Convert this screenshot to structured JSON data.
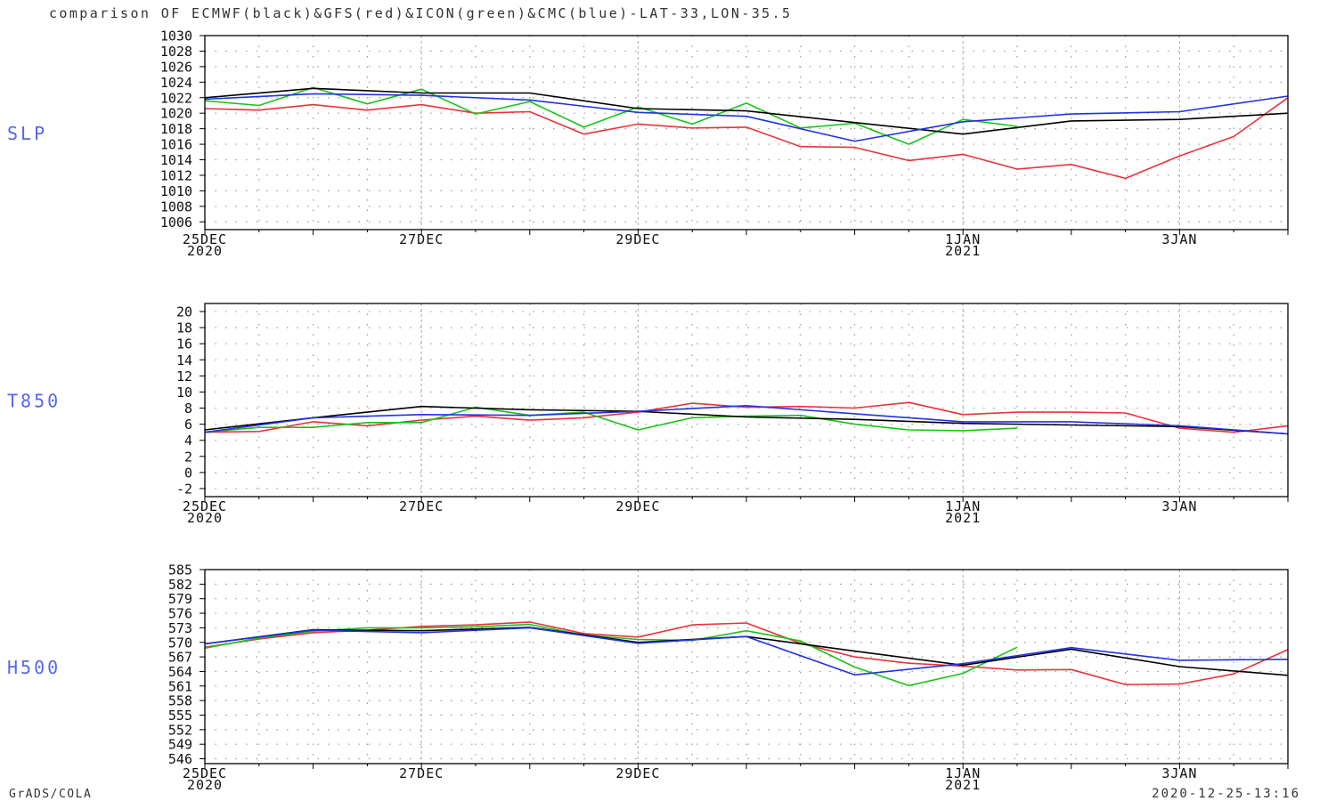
{
  "title": "comparison OF ECMWF(black)&GFS(red)&ICON(green)&CMC(blue)-LAT-33,LON-35.5",
  "footer_left": "GrADS/COLA",
  "footer_right": "2020-12-25-13:16",
  "colors": {
    "ecmwf": "#000000",
    "gfs": "#e8333a",
    "icon": "#18c418",
    "cmc": "#2033e0",
    "label": "#5566ee",
    "grid": "#9a9a9a"
  },
  "x_ticks": [
    {
      "x": 0,
      "top": "25DEC",
      "bottom": "2020"
    },
    {
      "x": 2,
      "top": "27DEC",
      "bottom": ""
    },
    {
      "x": 4,
      "top": "29DEC",
      "bottom": ""
    },
    {
      "x": 7,
      "top": "1JAN",
      "bottom": "2021"
    },
    {
      "x": 9,
      "top": "3JAN",
      "bottom": ""
    }
  ],
  "chart_data": [
    {
      "type": "line",
      "panel_label": "SLP",
      "x_unit": "days since 25DEC2020 00Z",
      "xlim": [
        0,
        10
      ],
      "ylim": [
        1005,
        1030
      ],
      "yticks": [
        1006,
        1008,
        1010,
        1012,
        1014,
        1016,
        1018,
        1020,
        1022,
        1024,
        1026,
        1028,
        1030
      ],
      "series": [
        {
          "name": "ECMWF",
          "color": "black",
          "x": [
            0,
            1,
            2,
            3,
            4,
            5,
            6,
            7,
            8,
            9,
            10
          ],
          "y": [
            1022.0,
            1023.2,
            1022.6,
            1022.6,
            1020.6,
            1020.3,
            1018.8,
            1017.3,
            1019.0,
            1019.2,
            1020.0
          ]
        },
        {
          "name": "GFS",
          "color": "red",
          "x": [
            0,
            0.5,
            1,
            1.5,
            2,
            2.5,
            3,
            3.5,
            4,
            4.5,
            5,
            5.5,
            6,
            6.5,
            7,
            7.5,
            8,
            8.5,
            9,
            9.5,
            10
          ],
          "y": [
            1020.6,
            1020.4,
            1021.1,
            1020.4,
            1021.1,
            1020.0,
            1020.2,
            1017.3,
            1018.6,
            1018.1,
            1018.2,
            1015.7,
            1015.6,
            1013.9,
            1014.7,
            1012.8,
            1013.4,
            1011.6,
            1014.5,
            1017.0,
            1022.0
          ]
        },
        {
          "name": "ICON",
          "color": "green",
          "x": [
            0,
            0.5,
            1,
            1.5,
            2,
            2.5,
            3,
            3.5,
            4,
            4.5,
            5,
            5.5,
            6,
            6.5,
            7,
            7.5
          ],
          "y": [
            1021.6,
            1021.0,
            1023.3,
            1021.2,
            1023.1,
            1019.9,
            1021.5,
            1018.2,
            1020.8,
            1018.6,
            1021.3,
            1018.1,
            1018.7,
            1016.0,
            1019.2,
            1018.3
          ]
        },
        {
          "name": "CMC",
          "color": "blue",
          "x": [
            0,
            1,
            2,
            3,
            4,
            5,
            6,
            7,
            8,
            9,
            10
          ],
          "y": [
            1021.8,
            1022.5,
            1022.3,
            1021.7,
            1020.1,
            1019.6,
            1016.4,
            1018.9,
            1019.9,
            1020.2,
            1022.2
          ]
        }
      ]
    },
    {
      "type": "line",
      "panel_label": "T850",
      "x_unit": "days since 25DEC2020 00Z",
      "xlim": [
        0,
        10
      ],
      "ylim": [
        -3,
        21
      ],
      "yticks": [
        -2,
        0,
        2,
        4,
        6,
        8,
        10,
        12,
        14,
        16,
        18,
        20
      ],
      "series": [
        {
          "name": "ECMWF",
          "color": "black",
          "x": [
            0,
            1,
            2,
            3,
            4,
            5,
            6,
            7,
            8,
            9,
            10
          ],
          "y": [
            5.3,
            6.8,
            8.2,
            7.8,
            7.6,
            6.9,
            6.6,
            6.1,
            5.9,
            5.7,
            4.8
          ]
        },
        {
          "name": "GFS",
          "color": "red",
          "x": [
            0,
            0.5,
            1,
            1.5,
            2,
            2.5,
            3,
            3.5,
            4,
            4.5,
            5,
            5.5,
            6,
            6.5,
            7,
            7.5,
            8,
            8.5,
            9,
            9.5,
            10
          ],
          "y": [
            5.0,
            5.1,
            6.3,
            5.8,
            6.5,
            7.0,
            6.5,
            6.8,
            7.5,
            8.6,
            8.1,
            8.2,
            8.0,
            8.7,
            7.2,
            7.5,
            7.5,
            7.4,
            5.5,
            5.0,
            5.8
          ]
        },
        {
          "name": "ICON",
          "color": "green",
          "x": [
            0,
            0.5,
            1,
            1.5,
            2,
            2.5,
            3,
            3.5,
            4,
            4.5,
            5,
            5.5,
            6,
            6.5,
            7,
            7.5
          ],
          "y": [
            5.0,
            5.6,
            5.6,
            6.2,
            6.2,
            8.1,
            7.1,
            7.5,
            5.3,
            6.8,
            7.0,
            7.1,
            6.0,
            5.3,
            5.2,
            5.5
          ]
        },
        {
          "name": "CMC",
          "color": "blue",
          "x": [
            0,
            1,
            2,
            3,
            4,
            5,
            6,
            7,
            8,
            9,
            10
          ],
          "y": [
            5.0,
            6.8,
            7.2,
            7.1,
            7.6,
            8.3,
            7.3,
            6.3,
            6.3,
            5.8,
            4.8
          ]
        }
      ]
    },
    {
      "type": "line",
      "panel_label": "H500",
      "x_unit": "days since 25DEC2020 00Z",
      "xlim": [
        0,
        10
      ],
      "ylim": [
        545,
        585
      ],
      "yticks": [
        546,
        549,
        552,
        555,
        558,
        561,
        564,
        567,
        570,
        573,
        576,
        579,
        582,
        585
      ],
      "series": [
        {
          "name": "ECMWF",
          "color": "black",
          "x": [
            0,
            1,
            2,
            3,
            4,
            5,
            6,
            7,
            8,
            9,
            10
          ],
          "y": [
            569.7,
            572.6,
            572.4,
            573.1,
            570.0,
            571.2,
            568.2,
            565.3,
            568.6,
            565.0,
            563.2
          ]
        },
        {
          "name": "GFS",
          "color": "red",
          "x": [
            0,
            0.5,
            1,
            1.5,
            2,
            2.5,
            3,
            3.5,
            4,
            4.5,
            5,
            5.5,
            6,
            6.5,
            7,
            7.5,
            8,
            8.5,
            9,
            9.5,
            10
          ],
          "y": [
            569.0,
            570.7,
            572.0,
            572.5,
            573.3,
            573.6,
            574.2,
            571.8,
            571.1,
            573.6,
            574.0,
            569.8,
            567.0,
            565.7,
            565.1,
            564.3,
            564.4,
            561.3,
            561.4,
            563.5,
            568.5
          ]
        },
        {
          "name": "ICON",
          "color": "green",
          "x": [
            0,
            0.5,
            1,
            1.5,
            2,
            2.5,
            3,
            3.5,
            4,
            4.5,
            5,
            5.5,
            6,
            6.5,
            7,
            7.5
          ],
          "y": [
            568.8,
            570.9,
            572.3,
            573.0,
            573.0,
            573.2,
            573.7,
            571.5,
            570.6,
            570.4,
            572.4,
            570.3,
            564.9,
            561.1,
            563.6,
            569.0
          ]
        },
        {
          "name": "CMC",
          "color": "blue",
          "x": [
            0,
            1,
            2,
            3,
            4,
            5,
            6,
            7,
            8,
            9,
            10
          ],
          "y": [
            569.7,
            572.5,
            572.0,
            573.0,
            569.8,
            571.2,
            563.3,
            565.6,
            568.9,
            566.3,
            566.5
          ]
        }
      ]
    }
  ]
}
